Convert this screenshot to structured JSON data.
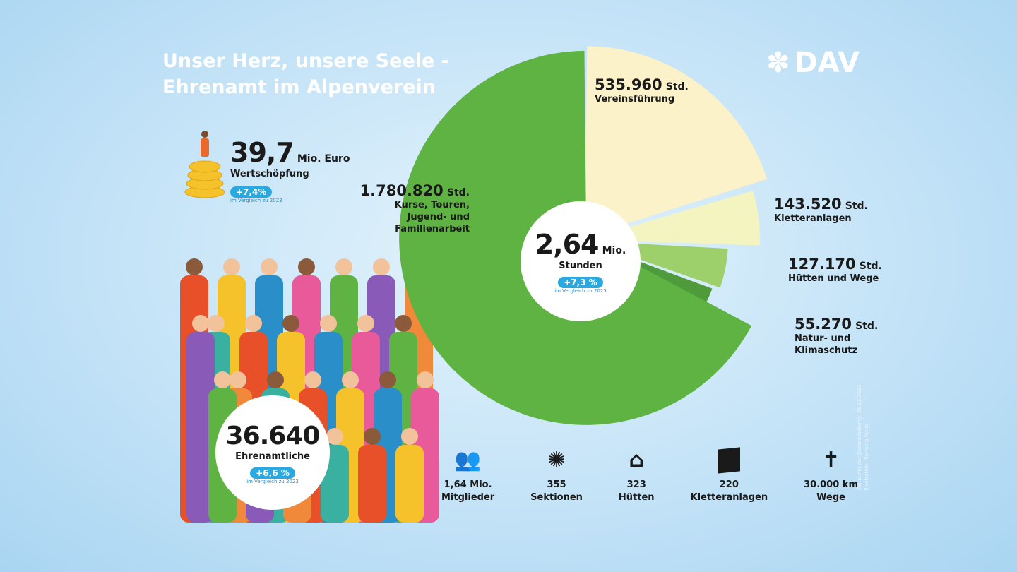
{
  "title": {
    "line1": "Unser Herz, unsere Seele -",
    "line2": "Ehrenamt im Alpenverein"
  },
  "logo": {
    "text": "DAV"
  },
  "wertschoepfung": {
    "value": "39,7",
    "unit": "Mio. Euro",
    "label": "Wertschöpfung",
    "change": "+7,4%",
    "compare": "im Vergleich zu 2023"
  },
  "ehrenamtliche": {
    "value": "36.640",
    "label": "Ehrenamtliche",
    "change": "+6,6 %",
    "compare": "im Vergleich zu 2023"
  },
  "total": {
    "value": "2,64",
    "unit": "Mio.",
    "label": "Stunden",
    "change": "+7,3 %",
    "compare": "im Vergleich zu 2023"
  },
  "chart_data": {
    "type": "pie",
    "unit": "Std.",
    "slices": [
      {
        "label": "Vereinsführung",
        "value": 535960,
        "display": "535.960",
        "color": "#fbf2c9"
      },
      {
        "label": "Kletteranlagen",
        "value": 143520,
        "display": "143.520",
        "color": "#f3f4c0"
      },
      {
        "label": "Hütten und Wege",
        "value": 127170,
        "display": "127.170",
        "color": "#9dd06a"
      },
      {
        "label": "Natur- und Klimaschutz",
        "value": 55270,
        "display": "55.270",
        "color": "#4f9a3a"
      },
      {
        "label": "Kurse, Touren, Jugend- und Familienarbeit",
        "value": 1780820,
        "display": "1.780.820",
        "color": "#5fb342"
      }
    ]
  },
  "stats": [
    {
      "value": "1,64 Mio.",
      "label": "Mitglieder",
      "icon": "people-icon"
    },
    {
      "value": "355",
      "label": "Sektionen",
      "icon": "edelweiss-icon"
    },
    {
      "value": "323",
      "label": "Hütten",
      "icon": "hut-icon"
    },
    {
      "value": "220",
      "label": "Kletteranlagen",
      "icon": "climbing-wall-icon"
    },
    {
      "value": "30.000 km",
      "label": "Wege",
      "icon": "signpost-icon"
    }
  ],
  "footnote": {
    "line1": "Zeitpunkt der Datenerhebung: 31.12.2023",
    "line2": "Illustration: Marmota Maps"
  }
}
